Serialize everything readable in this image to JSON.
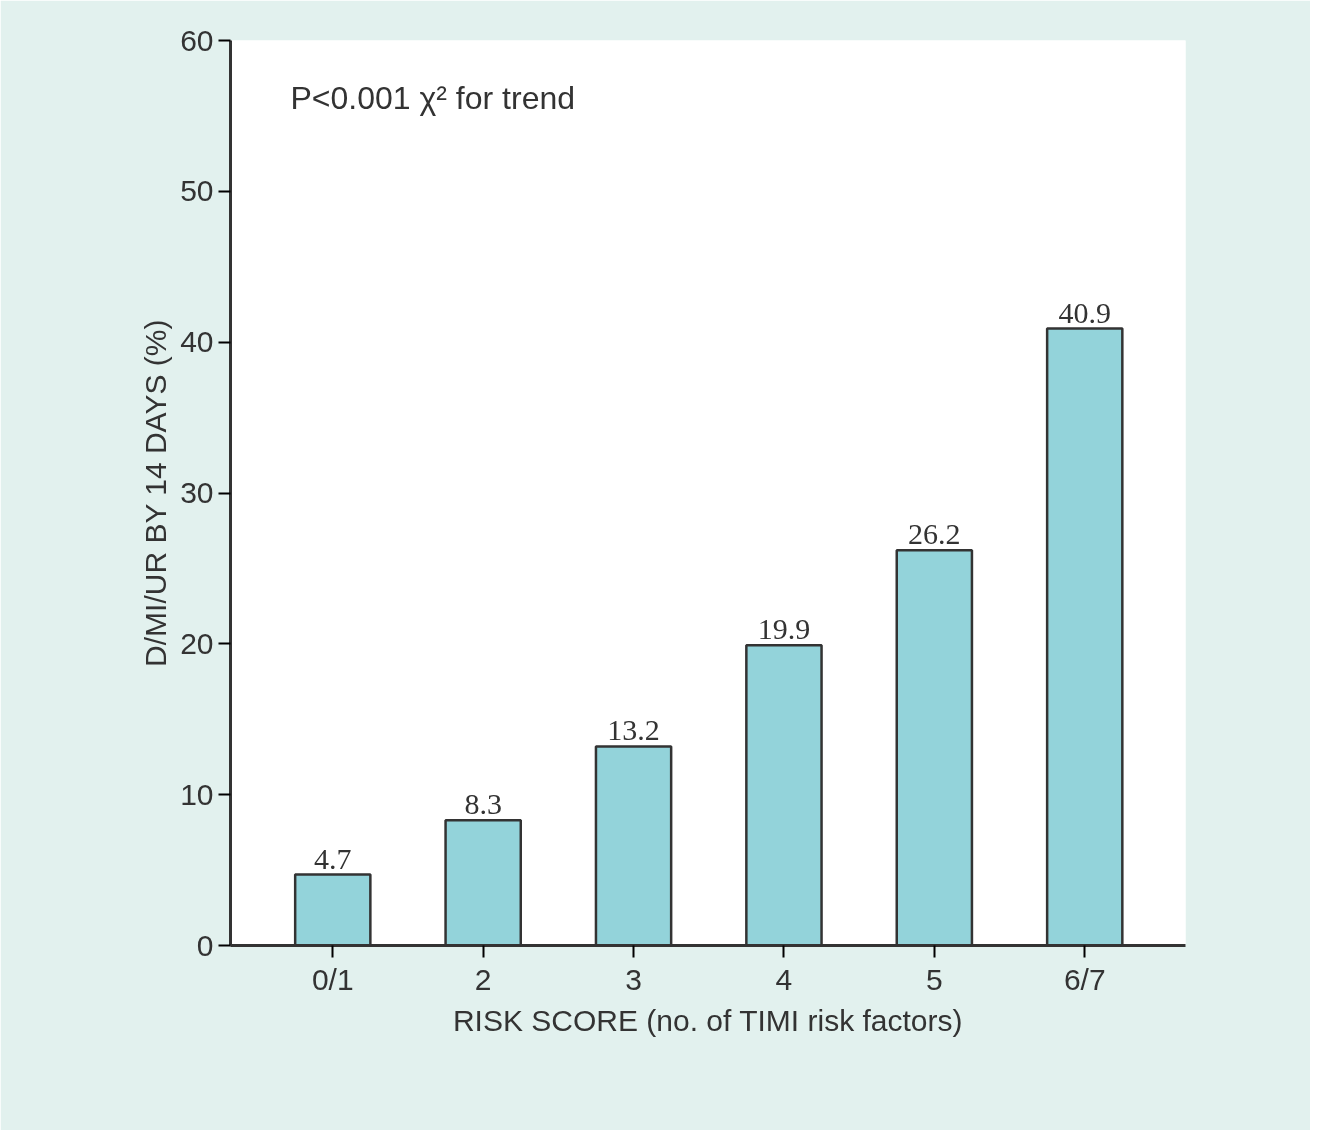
{
  "chart_data": {
    "type": "bar",
    "xlabel": "RISK SCORE (no. of TIMI risk factors)",
    "ylabel": "D/MI/UR BY 14 DAYS (%)",
    "categories": [
      "0/1",
      "2",
      "3",
      "4",
      "5",
      "6/7"
    ],
    "values": [
      4.7,
      8.3,
      13.2,
      19.9,
      26.2,
      40.9
    ],
    "color": "#93d3da",
    "ylim": [
      0,
      60
    ],
    "yticks": [
      0,
      10,
      20,
      30,
      40,
      50,
      60
    ],
    "grid": false,
    "data_labels": true,
    "annotations": [
      "P<0.001 χ² for trend"
    ]
  }
}
